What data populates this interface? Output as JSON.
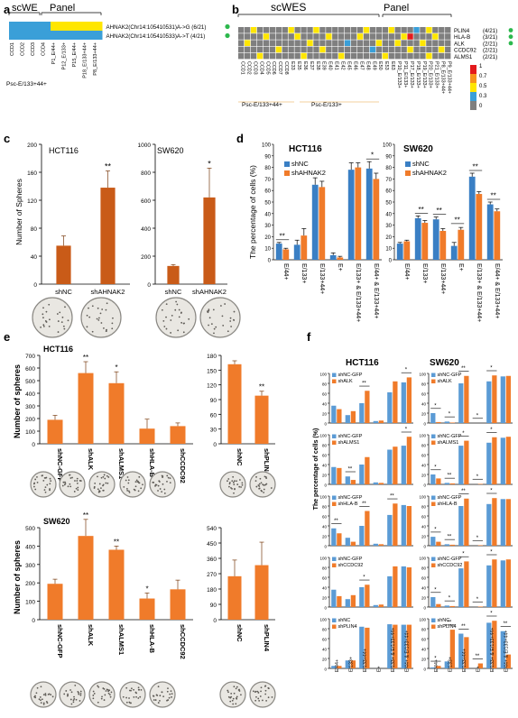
{
  "figure": {
    "panels": {
      "a": "a",
      "b": "b",
      "c": "c",
      "d": "d",
      "e": "e",
      "f": "f"
    },
    "a": {
      "label_scWE": "scWE",
      "label_panel": "Panel",
      "columns": [
        {
          "label": "CCD1",
          "color": "#e8a23c"
        },
        {
          "label": "CCD2",
          "color": "#e8a23c"
        },
        {
          "label": "CCD3",
          "color": "#e8a23c"
        },
        {
          "label": "CCD4",
          "color": "#e8a23c"
        },
        {
          "label": "P1_E/44+",
          "color": "#000000"
        },
        {
          "label": "P12_E/133+",
          "color": "#000000"
        },
        {
          "label": "P15_E/44+",
          "color": "#000000"
        },
        {
          "label": "P18_E/133+44+",
          "color": "#e8a23c"
        },
        {
          "label": "P8_E/133+44+",
          "color": "#000000"
        }
      ],
      "group_label": "Psc-E/133+44+",
      "rows": [
        {
          "label": "AHNAK2(Chr14:105410531)A->G (6/21)",
          "cells": [
            "#3a9fd8",
            "#3a9fd8",
            "#3a9fd8",
            "#3a9fd8",
            "#ffe600",
            "#ffe600",
            "#ffe600",
            "#ffe600",
            "#ffe600"
          ]
        },
        {
          "label": "AHNAK2(Chr14:105410533)A->T  (4/21)",
          "cells": [
            "#3a9fd8",
            "#3a9fd8",
            "#3a9fd8",
            "#3a9fd8",
            "#3a9fd8",
            "#3a9fd8",
            "#3a9fd8",
            "#3a9fd8",
            "#3a9fd8"
          ]
        }
      ]
    },
    "b": {
      "label_scWES": "scWES",
      "label_panel": "Panel",
      "rows": [
        {
          "label": "PLIN4",
          "count": "(4/21)"
        },
        {
          "label": "HLA-B",
          "count": "(3/21)"
        },
        {
          "label": "ALK",
          "count": "(2/21)"
        },
        {
          "label": "CCDC92",
          "count": "(2/21)"
        },
        {
          "label": "ALMS1",
          "count": "(2/21)"
        }
      ],
      "group1": "Psc-E/133+44+",
      "group2": "Psc-E/133+",
      "columns_orange": [
        "CCD1",
        "CCD2",
        "CCD3",
        "CCD4",
        "CCD5",
        "CCD6",
        "CCD7",
        "CCD8"
      ],
      "columns_b2": [
        "E33",
        "E35",
        "E36",
        "E37",
        "E38",
        "E39",
        "E40",
        "E41",
        "E42",
        "E45",
        "E46",
        "E47",
        "E48",
        "E49",
        "E50",
        "E53",
        "E63"
      ],
      "columns_panel": [
        "P10_E/133+",
        "P11_E/133+",
        "P17_E/133+",
        "P18_E/133+",
        "P19_E/133+",
        "P20_E/133+",
        "P21_E/133+",
        "P8_E/133+44+",
        "P9_E/133+44+"
      ],
      "legend_ticks": [
        "1",
        "0.7",
        "0.5",
        "0.3",
        "0"
      ],
      "legend_colors": [
        "#e31a1c",
        "#f7941d",
        "#ffe600",
        "#3a9fd8",
        "#7f7f7f"
      ]
    },
    "c": {
      "ylabel": "Number of Spheres",
      "charts": [
        {
          "title": "HCT116",
          "categories": [
            "shNC",
            "shAHNAK2"
          ],
          "values": [
            55,
            138
          ],
          "errors": [
            14,
            24
          ],
          "sig": [
            "",
            "**"
          ],
          "ylim": [
            0,
            200
          ],
          "ticks": [
            "0",
            "40",
            "80",
            "120",
            "160",
            "200"
          ]
        },
        {
          "title": "SW620",
          "categories": [
            "shNC",
            "shAHNAK2"
          ],
          "values": [
            130,
            620
          ],
          "errors": [
            10,
            210
          ],
          "sig": [
            "",
            "*"
          ],
          "ylim": [
            0,
            1000
          ],
          "ticks": [
            "0",
            "200",
            "400",
            "600",
            "800",
            "1000"
          ]
        }
      ]
    },
    "d": {
      "ylabel": "The percentage of cells (%)",
      "legend": [
        "shNC",
        "shAHNAK2"
      ],
      "colors": [
        "#3a7fc4",
        "#f07b2a"
      ],
      "categories": [
        "E/44+",
        "E/133+",
        "E/133+44+",
        "E+",
        "E/133+ & E/133+44+",
        "E/44+ & E/133+44+"
      ],
      "ticks": [
        "0",
        "10",
        "20",
        "30",
        "40",
        "50",
        "60",
        "70",
        "80",
        "90",
        "100"
      ],
      "charts": [
        {
          "title": "HCT116",
          "series": [
            [
              14,
              13,
              65,
              4,
              78,
              79
            ],
            [
              9,
              21,
              63,
              2,
              80,
              70
            ]
          ],
          "errors": [
            [
              1,
              4,
              6,
              2,
              6,
              6
            ],
            [
              1,
              6,
              5,
              1,
              4,
              5
            ]
          ],
          "sig": [
            "**",
            "",
            "",
            "",
            "",
            "*"
          ]
        },
        {
          "title": "SW620",
          "series": [
            [
              14,
              36,
              35,
              12,
              72,
              48
            ],
            [
              16,
              32,
              25,
              26,
              57,
              42
            ]
          ],
          "errors": [
            [
              1,
              2,
              2,
              3,
              3,
              2
            ],
            [
              1,
              2,
              2,
              2,
              2,
              2
            ]
          ],
          "sig": [
            "",
            "**",
            "**",
            "**",
            "**",
            "**"
          ]
        }
      ]
    },
    "e": {
      "ylabel": "Number of spheres",
      "charts": [
        {
          "title": "HCT116",
          "categories": [
            "shNC-GFP",
            "shALK",
            "shALMS1",
            "shHLA-B",
            "shCCDC92"
          ],
          "values": [
            190,
            560,
            480,
            120,
            140
          ],
          "errors": [
            35,
            90,
            90,
            75,
            25
          ],
          "sig": [
            "",
            "**",
            "*",
            "",
            ""
          ],
          "ylim": [
            0,
            700
          ],
          "ticks": [
            "0",
            "100",
            "200",
            "300",
            "400",
            "500",
            "600",
            "700"
          ]
        },
        {
          "title": "",
          "categories": [
            "shNC",
            "shPLIN4"
          ],
          "values": [
            162,
            98
          ],
          "errors": [
            7,
            9
          ],
          "sig": [
            "",
            "**"
          ],
          "ylim": [
            0,
            180
          ],
          "ticks": [
            "0",
            "30",
            "60",
            "90",
            "120",
            "150",
            "180"
          ]
        },
        {
          "title": "SW620",
          "categories": [
            "shNC-GFP",
            "shALK",
            "shALMS1",
            "shHLA-B",
            "shCCDC92"
          ],
          "values": [
            195,
            455,
            380,
            115,
            165
          ],
          "errors": [
            25,
            90,
            20,
            30,
            50
          ],
          "sig": [
            "",
            "**",
            "**",
            "*",
            ""
          ],
          "ylim": [
            0,
            500
          ],
          "ticks": [
            "0",
            "100",
            "200",
            "300",
            "400",
            "500"
          ]
        },
        {
          "title": "",
          "categories": [
            "shNC",
            "shPLIN4"
          ],
          "values": [
            255,
            320
          ],
          "errors": [
            95,
            135
          ],
          "sig": [
            "",
            ""
          ],
          "ylim": [
            0,
            540
          ],
          "ticks": [
            "0",
            "90",
            "180",
            "270",
            "360",
            "450",
            "540"
          ]
        }
      ]
    },
    "f": {
      "ylabel": "The percentage of cells (%)",
      "titles": [
        "HCT116",
        "SW620"
      ],
      "categories": [
        "E/44+",
        "E/133+",
        "E/133+44+",
        "E+",
        "E/133+ & E/133+44+",
        "E/44+ & E/133+44+"
      ],
      "ticks": [
        "0",
        "20",
        "40",
        "60",
        "80",
        "100"
      ],
      "colors": [
        "#5b9bd5",
        "#f07b2a"
      ],
      "rows": [
        {
          "legend": [
            "shNC-GFP",
            "shALK"
          ],
          "hct": [
            [
              35,
              16,
              40,
              4,
              62,
              82
            ],
            [
              28,
              24,
              65,
              5,
              84,
              92
            ]
          ],
          "sw": [
            [
              20,
              3,
              80,
              0,
              84,
              94
            ],
            [
              2,
              1,
              95,
              0,
              96,
              95
            ]
          ],
          "hct_sig": [
            "",
            "",
            "**",
            "",
            "",
            "*"
          ],
          "sw_sig": [
            "*",
            "*",
            "**",
            "*",
            "*",
            ""
          ]
        },
        {
          "legend": [
            "shNC-GFP",
            "shALMS1"
          ],
          "hct": [
            [
              35,
              16,
              40,
              4,
              70,
              78
            ],
            [
              33,
              9,
              55,
              3,
              76,
              96
            ]
          ],
          "sw": [
            [
              20,
              3,
              78,
              0,
              84,
              94
            ],
            [
              12,
              2,
              88,
              1,
              95,
              96
            ]
          ],
          "hct_sig": [
            "",
            "**",
            "",
            "",
            "",
            "*"
          ],
          "sw_sig": [
            "*",
            "**",
            "*",
            "*",
            "*",
            ""
          ]
        },
        {
          "legend": [
            "shNC-GFP",
            "shHLA-B"
          ],
          "hct": [
            [
              35,
              16,
              40,
              4,
              62,
              82
            ],
            [
              25,
              8,
              70,
              3,
              85,
              80
            ]
          ],
          "sw": [
            [
              18,
              3,
              80,
              0,
              84,
              94
            ],
            [
              8,
              2,
              95,
              1,
              96,
              94
            ]
          ],
          "hct_sig": [
            "**",
            "",
            "**",
            "",
            "**",
            ""
          ],
          "sw_sig": [
            "*",
            "**",
            "**",
            "*",
            "*",
            ""
          ]
        },
        {
          "legend": [
            "shNC-GFP",
            "shCCDC92"
          ],
          "hct": [
            [
              35,
              16,
              40,
              4,
              62,
              82
            ],
            [
              22,
              24,
              45,
              5,
              82,
              80
            ]
          ],
          "sw": [
            [
              20,
              3,
              78,
              0,
              84,
              94
            ],
            [
              6,
              2,
              92,
              1,
              96,
              96
            ]
          ],
          "hct_sig": [
            "",
            "",
            "*",
            "",
            "",
            ""
          ],
          "sw_sig": [
            "*",
            "*",
            "*",
            "*",
            "*",
            ""
          ]
        },
        {
          "legend": [
            "shNC",
            "shPLIN4"
          ],
          "hct": [
            [
              5,
              16,
              84,
              0,
              89,
              88
            ],
            [
              5,
              16,
              82,
              0,
              88,
              88
            ]
          ],
          "sw": [
            [
              2,
              14,
              70,
              0,
              92,
              75
            ],
            [
              5,
              78,
              63,
              10,
              96,
              28
            ]
          ],
          "hct_sig": [
            "",
            "",
            "",
            "",
            "",
            ""
          ],
          "sw_sig": [
            "*",
            "**",
            "**",
            "**",
            "*",
            "**"
          ]
        }
      ]
    }
  }
}
